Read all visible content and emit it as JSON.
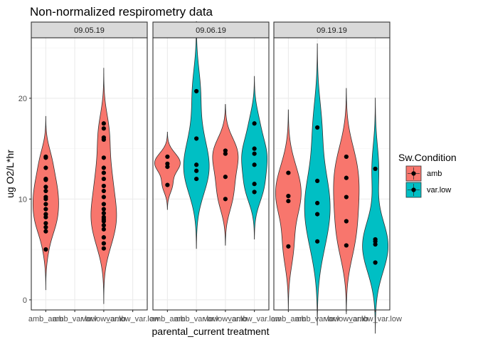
{
  "chart_data": {
    "type": "violin",
    "title": "Non-normalized respirometry data",
    "xlabel": "parental_current treatment",
    "ylabel": "ug O2/L*hr",
    "ylim": [
      -1.0,
      26.0
    ],
    "yticks": [
      0,
      10,
      20
    ],
    "categories": [
      "amb_amb",
      "amb_var.low",
      "var.low_amb",
      "var.low_var.low"
    ],
    "legend": {
      "title": "Sw.Condition",
      "position": "right",
      "entries": [
        {
          "name": "amb",
          "color": "#F8766D"
        },
        {
          "name": "var.low",
          "color": "#00BFC4"
        }
      ]
    },
    "panels": [
      {
        "label": "09.05.19",
        "groups": [
          {
            "category": "amb_amb",
            "condition": "amb",
            "points": [
              5.0,
              6.8,
              7.2,
              7.6,
              8.2,
              8.5,
              9.0,
              9.5,
              10.0,
              10.2,
              10.8,
              11.2,
              11.9,
              12.0,
              13.1,
              14.1,
              14.2
            ]
          },
          {
            "category": "var.low_amb",
            "condition": "amb",
            "points": [
              5.1,
              5.6,
              6.2,
              7.0,
              7.4,
              7.8,
              8.0,
              8.2,
              8.6,
              9.0,
              9.5,
              10.2,
              10.8,
              11.3,
              12.0,
              12.6,
              13.1,
              14.1,
              15.9,
              16.1,
              17.0,
              17.5
            ]
          }
        ]
      },
      {
        "label": "09.06.19",
        "groups": [
          {
            "category": "amb_amb",
            "condition": "amb",
            "points": [
              11.4,
              13.2,
              13.5,
              14.2
            ]
          },
          {
            "category": "amb_var.low",
            "condition": "var.low",
            "points": [
              12.0,
              12.8,
              13.4,
              16.0,
              20.7
            ]
          },
          {
            "category": "var.low_amb",
            "condition": "amb",
            "points": [
              10.0,
              12.2,
              14.5,
              14.8
            ]
          },
          {
            "category": "var.low_var.low",
            "condition": "var.low",
            "points": [
              10.7,
              11.5,
              13.4,
              14.5,
              15.0,
              17.5
            ]
          }
        ]
      },
      {
        "label": "09.19.19",
        "groups": [
          {
            "category": "amb_amb",
            "condition": "amb",
            "points": [
              5.3,
              9.8,
              10.3,
              12.6
            ]
          },
          {
            "category": "amb_var.low",
            "condition": "var.low",
            "points": [
              5.8,
              8.5,
              9.6,
              11.8,
              17.1
            ]
          },
          {
            "category": "var.low_amb",
            "condition": "amb",
            "points": [
              5.4,
              7.8,
              10.2,
              12.1,
              14.2
            ]
          },
          {
            "category": "var.low_var.low",
            "condition": "var.low",
            "points": [
              3.7,
              5.5,
              5.8,
              6.0,
              13.0
            ]
          }
        ]
      }
    ]
  }
}
